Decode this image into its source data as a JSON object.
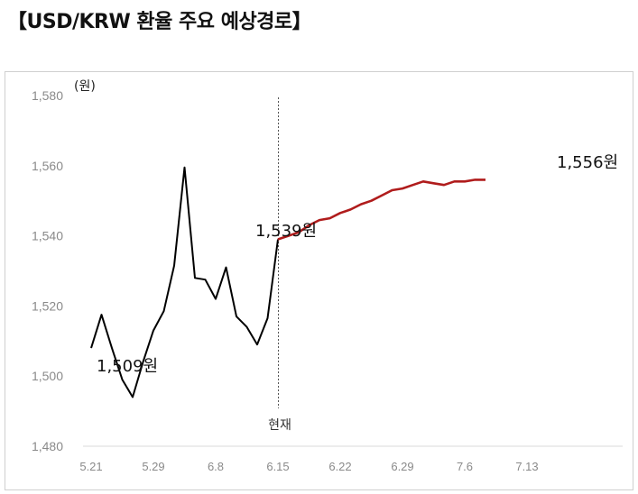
{
  "title": "【USD/KRW 환율 주요 예상경로】",
  "chart_data": {
    "type": "line",
    "title": "",
    "unit_label": "(원)",
    "xlabel": "",
    "ylabel": "",
    "ylim": [
      1480,
      1580
    ],
    "y_ticks": [
      "1,580",
      "1,560",
      "1,540",
      "1,520",
      "1,500",
      "1,480"
    ],
    "y_tick_values": [
      1580,
      1560,
      1540,
      1520,
      1500,
      1480
    ],
    "x_ticks": [
      "5.21",
      "5.29",
      "6.8",
      "6.15",
      "6.22",
      "6.29",
      "7.6",
      "7.13"
    ],
    "x_tick_index": [
      0,
      6,
      12,
      18,
      24,
      30,
      36,
      42
    ],
    "series": [
      {
        "color": "#000000",
        "values": [
          1508,
          1517.5,
          1508,
          1499,
          1494,
          1504,
          1513,
          1518.5,
          1531.5,
          1559.5,
          1528,
          1527.5,
          1522,
          1531,
          1517,
          1514,
          1509,
          1516.5,
          1539
        ],
        "start_index": 0
      },
      {
        "color": "#b01c1c",
        "values": [
          1539,
          1540,
          1541,
          1543,
          1544.5,
          1545,
          1546.5,
          1547.5,
          1549,
          1550,
          1551.5,
          1553,
          1553.5,
          1554.5,
          1555.5,
          1555,
          1554.5,
          1555.5,
          1555.5,
          1556,
          1556
        ],
        "start_index": 18
      }
    ],
    "annotations": [
      {
        "text": "1,509원",
        "value": 1509
      },
      {
        "text": "1,539원",
        "value": 1539
      },
      {
        "text": "1,556원",
        "value": 1556
      }
    ],
    "current_marker": {
      "label": "현재",
      "index": 18
    },
    "grid": false,
    "legend": "none"
  }
}
